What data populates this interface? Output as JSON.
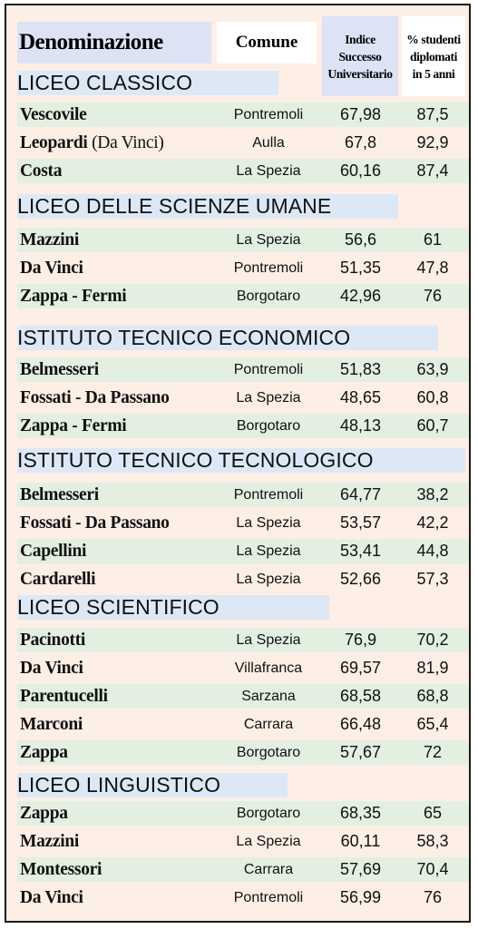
{
  "header": {
    "denominazione": "Denominazione",
    "comune": "Comune",
    "indice": "Indice Successo Universitario",
    "perc": "% studenti diplomati in 5 anni",
    "indice_lines": [
      "Indice",
      "Successo",
      "Universitario"
    ],
    "perc_lines": [
      "% studenti",
      "diplomati",
      "in 5 anni"
    ]
  },
  "sections": [
    {
      "title": "LICEO CLASSICO",
      "rows": [
        {
          "name": "Vescovile",
          "name_sub": "",
          "comune": "Pontremoli",
          "indice": "67,98",
          "perc": "87,5"
        },
        {
          "name": "Leopardi",
          "name_sub": "(Da Vinci)",
          "comune": "Aulla",
          "indice": "67,8",
          "perc": "92,9"
        },
        {
          "name": "Costa",
          "name_sub": "",
          "comune": "La Spezia",
          "indice": "60,16",
          "perc": "87,4"
        }
      ]
    },
    {
      "title": "LICEO DELLE SCIENZE UMANE",
      "rows": [
        {
          "name": "Mazzini",
          "name_sub": "",
          "comune": "La Spezia",
          "indice": "56,6",
          "perc": "61"
        },
        {
          "name": "Da Vinci",
          "name_sub": "",
          "comune": "Pontremoli",
          "indice": "51,35",
          "perc": "47,8"
        },
        {
          "name": "Zappa - Fermi",
          "name_sub": "",
          "comune": "Borgotaro",
          "indice": "42,96",
          "perc": "76"
        }
      ]
    },
    {
      "title": "ISTITUTO TECNICO ECONOMICO",
      "rows": [
        {
          "name": "Belmesseri",
          "name_sub": "",
          "comune": "Pontremoli",
          "indice": "51,83",
          "perc": "63,9"
        },
        {
          "name": "Fossati - Da Passano",
          "name_sub": "",
          "comune": "La Spezia",
          "indice": "48,65",
          "perc": "60,8"
        },
        {
          "name": "Zappa - Fermi",
          "name_sub": "",
          "comune": "Borgotaro",
          "indice": "48,13",
          "perc": "60,7"
        }
      ]
    },
    {
      "title": "ISTITUTO TECNICO TECNOLOGICO",
      "rows": [
        {
          "name": "Belmesseri",
          "name_sub": "",
          "comune": "Pontremoli",
          "indice": "64,77",
          "perc": "38,2"
        },
        {
          "name": "Fossati - Da Passano",
          "name_sub": "",
          "comune": "La Spezia",
          "indice": "53,57",
          "perc": "42,2"
        },
        {
          "name": "Capellini",
          "name_sub": "",
          "comune": "La Spezia",
          "indice": "53,41",
          "perc": "44,8"
        },
        {
          "name": "Cardarelli",
          "name_sub": "",
          "comune": "La Spezia",
          "indice": "52,66",
          "perc": "57,3"
        }
      ]
    },
    {
      "title": "LICEO SCIENTIFICO",
      "rows": [
        {
          "name": "Pacinotti",
          "name_sub": "",
          "comune": "La Spezia",
          "indice": "76,9",
          "perc": "70,2"
        },
        {
          "name": "Da Vinci",
          "name_sub": "",
          "comune": "Villafranca",
          "indice": "69,57",
          "perc": "81,9"
        },
        {
          "name": "Parentucelli",
          "name_sub": "",
          "comune": "Sarzana",
          "indice": "68,58",
          "perc": "68,8"
        },
        {
          "name": "Marconi",
          "name_sub": "",
          "comune": "Carrara",
          "indice": "66,48",
          "perc": "65,4"
        },
        {
          "name": "Zappa",
          "name_sub": "",
          "comune": "Borgotaro",
          "indice": "57,67",
          "perc": "72"
        }
      ]
    },
    {
      "title": "LICEO LINGUISTICO",
      "rows": [
        {
          "name": "Zappa",
          "name_sub": "",
          "comune": "Borgotaro",
          "indice": "68,35",
          "perc": "65"
        },
        {
          "name": "Mazzini",
          "name_sub": "",
          "comune": "La Spezia",
          "indice": "60,11",
          "perc": "58,3"
        },
        {
          "name": "Montessori",
          "name_sub": "",
          "comune": "Carrara",
          "indice": "57,69",
          "perc": "70,4"
        },
        {
          "name": "Da Vinci",
          "name_sub": "",
          "comune": "Pontremoli",
          "indice": "56,99",
          "perc": "76"
        }
      ]
    }
  ],
  "colors": {
    "background": "#fdeee6",
    "header_blue": "#dde3f5",
    "section_blue": "#dde8f6",
    "row_green": "#e3efe1",
    "border": "#1b1b1b"
  }
}
